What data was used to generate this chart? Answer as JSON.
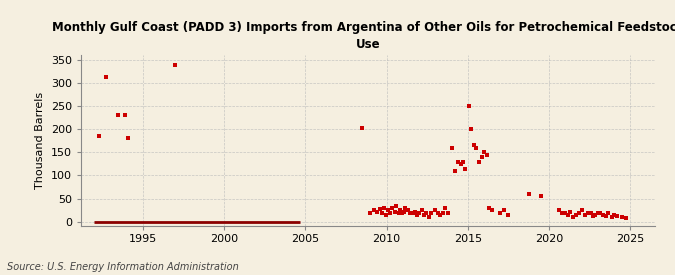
{
  "title": "Monthly Gulf Coast (PADD 3) Imports from Argentina of Other Oils for Petrochemical Feedstock\nUse",
  "ylabel": "Thousand Barrels",
  "source": "Source: U.S. Energy Information Administration",
  "bg_color": "#f5efe0",
  "scatter_color": "#cc0000",
  "line_color": "#8b0000",
  "xlim_left": 1991.2,
  "xlim_right": 2026.5,
  "ylim_bottom": -8,
  "ylim_top": 360,
  "yticks": [
    0,
    50,
    100,
    150,
    200,
    250,
    300,
    350
  ],
  "xticks": [
    1995,
    2000,
    2005,
    2010,
    2015,
    2020,
    2025
  ],
  "scatter_data": {
    "years": [
      1992.3,
      1992.75,
      1993.5,
      1993.9,
      1994.1,
      1997.0,
      2008.5,
      2009.0,
      2009.2,
      2009.4,
      2009.6,
      2009.7,
      2009.85,
      2009.95,
      2010.1,
      2010.2,
      2010.35,
      2010.5,
      2010.6,
      2010.75,
      2010.85,
      2010.95,
      2011.05,
      2011.15,
      2011.3,
      2011.45,
      2011.6,
      2011.75,
      2011.85,
      2012.0,
      2012.15,
      2012.3,
      2012.45,
      2012.6,
      2012.75,
      2013.0,
      2013.15,
      2013.3,
      2013.45,
      2013.6,
      2013.75,
      2014.0,
      2014.2,
      2014.4,
      2014.55,
      2014.7,
      2014.85,
      2015.05,
      2015.2,
      2015.35,
      2015.5,
      2015.7,
      2015.85,
      2016.0,
      2016.15,
      2016.3,
      2016.5,
      2017.0,
      2017.2,
      2017.5,
      2018.75,
      2019.5,
      2020.6,
      2020.8,
      2021.0,
      2021.15,
      2021.3,
      2021.5,
      2021.65,
      2021.85,
      2022.0,
      2022.2,
      2022.4,
      2022.55,
      2022.7,
      2022.85,
      2023.0,
      2023.15,
      2023.3,
      2023.5,
      2023.65,
      2023.85,
      2024.0,
      2024.2,
      2024.5,
      2024.75
    ],
    "values": [
      185,
      312,
      230,
      230,
      180,
      338,
      202,
      20,
      25,
      22,
      28,
      18,
      30,
      15,
      25,
      18,
      30,
      22,
      35,
      20,
      25,
      18,
      22,
      30,
      25,
      20,
      18,
      22,
      15,
      20,
      25,
      15,
      18,
      10,
      20,
      25,
      20,
      15,
      20,
      30,
      18,
      160,
      110,
      130,
      125,
      130,
      115,
      250,
      200,
      165,
      160,
      130,
      140,
      150,
      145,
      30,
      25,
      20,
      25,
      15,
      60,
      55,
      25,
      20,
      18,
      15,
      22,
      10,
      15,
      20,
      25,
      15,
      18,
      20,
      12,
      15,
      18,
      20,
      15,
      12,
      18,
      10,
      15,
      12,
      10,
      8
    ]
  },
  "line_data": {
    "x_start": 1992.0,
    "x_end": 2004.7,
    "y_val": 0
  }
}
